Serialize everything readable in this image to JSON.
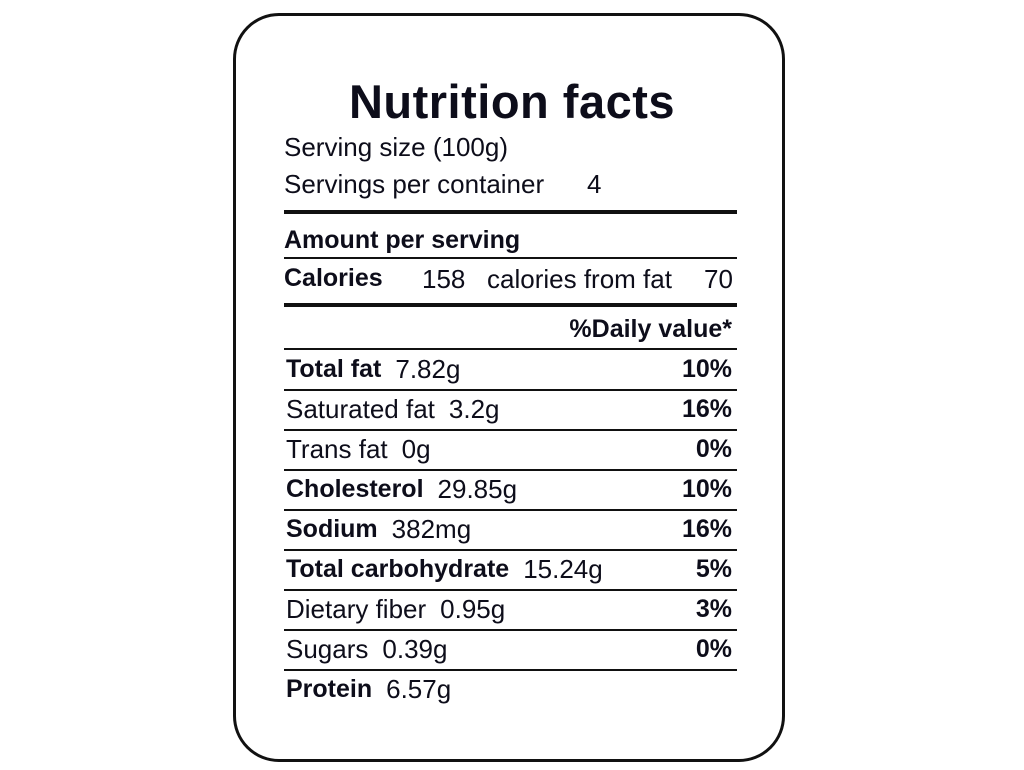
{
  "title": "Nutrition facts",
  "serving_size": "Serving size (100g)",
  "servings_label": "Servings per container",
  "servings_value": "4",
  "amount_per_serving": "Amount per serving",
  "calories": {
    "label": "Calories",
    "value": "158",
    "fat_label": "calories from fat",
    "fat_value": "70"
  },
  "daily_value_header": "%Daily value*",
  "rows": [
    {
      "name": "Total fat",
      "amount": "7.82g",
      "pct": "10%",
      "bold": true
    },
    {
      "name": "Saturated fat",
      "amount": "3.2g",
      "pct": "16%",
      "bold": false
    },
    {
      "name": "Trans fat",
      "amount": "0g",
      "pct": "0%",
      "bold": false
    },
    {
      "name": "Cholesterol",
      "amount": "29.85g",
      "pct": "10%",
      "bold": true
    },
    {
      "name": "Sodium",
      "amount": "382mg",
      "pct": "16%",
      "bold": true
    },
    {
      "name": "Total carbohydrate",
      "amount": "15.24g",
      "pct": "5%",
      "bold": true
    },
    {
      "name": "Dietary fiber",
      "amount": "0.95g",
      "pct": "3%",
      "bold": false
    },
    {
      "name": "Sugars",
      "amount": "0.39g",
      "pct": "0%",
      "bold": false
    },
    {
      "name": "Protein",
      "amount": "6.57g",
      "pct": "",
      "bold": true
    }
  ]
}
